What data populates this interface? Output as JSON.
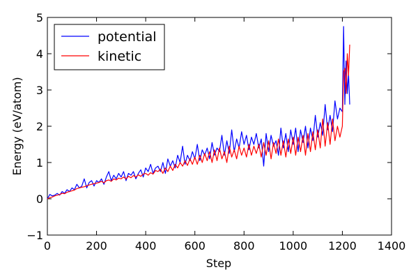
{
  "chart_data": {
    "type": "line",
    "title": "",
    "xlabel": "Step",
    "ylabel": "Energy (eV/atom)",
    "xlim": [
      0,
      1400
    ],
    "ylim": [
      -1,
      5
    ],
    "xticks": [
      "0",
      "200",
      "400",
      "600",
      "800",
      "1000",
      "1200",
      "1400"
    ],
    "yticks": [
      "−1",
      "0",
      "1",
      "2",
      "3",
      "4",
      "5"
    ],
    "grid": false,
    "legend_position": "upper-left",
    "series": [
      {
        "name": "potential",
        "color": "#0000ff",
        "points": [
          [
            0,
            0.0
          ],
          [
            10,
            0.12
          ],
          [
            20,
            0.08
          ],
          [
            30,
            0.1
          ],
          [
            40,
            0.15
          ],
          [
            50,
            0.1
          ],
          [
            60,
            0.2
          ],
          [
            70,
            0.15
          ],
          [
            80,
            0.25
          ],
          [
            90,
            0.2
          ],
          [
            100,
            0.3
          ],
          [
            110,
            0.25
          ],
          [
            120,
            0.4
          ],
          [
            130,
            0.3
          ],
          [
            140,
            0.35
          ],
          [
            150,
            0.55
          ],
          [
            160,
            0.3
          ],
          [
            170,
            0.45
          ],
          [
            180,
            0.5
          ],
          [
            190,
            0.35
          ],
          [
            200,
            0.5
          ],
          [
            210,
            0.45
          ],
          [
            220,
            0.55
          ],
          [
            230,
            0.4
          ],
          [
            240,
            0.6
          ],
          [
            250,
            0.75
          ],
          [
            260,
            0.5
          ],
          [
            270,
            0.65
          ],
          [
            280,
            0.55
          ],
          [
            290,
            0.7
          ],
          [
            300,
            0.6
          ],
          [
            310,
            0.75
          ],
          [
            320,
            0.5
          ],
          [
            330,
            0.7
          ],
          [
            340,
            0.65
          ],
          [
            350,
            0.75
          ],
          [
            360,
            0.55
          ],
          [
            370,
            0.7
          ],
          [
            380,
            0.8
          ],
          [
            390,
            0.6
          ],
          [
            400,
            0.85
          ],
          [
            410,
            0.75
          ],
          [
            420,
            0.95
          ],
          [
            430,
            0.7
          ],
          [
            440,
            0.85
          ],
          [
            450,
            0.9
          ],
          [
            460,
            0.75
          ],
          [
            470,
            1.0
          ],
          [
            480,
            0.7
          ],
          [
            490,
            1.1
          ],
          [
            500,
            0.9
          ],
          [
            510,
            1.05
          ],
          [
            520,
            0.85
          ],
          [
            530,
            1.2
          ],
          [
            540,
            1.0
          ],
          [
            550,
            1.45
          ],
          [
            560,
            0.95
          ],
          [
            570,
            1.2
          ],
          [
            580,
            1.05
          ],
          [
            590,
            1.3
          ],
          [
            600,
            1.1
          ],
          [
            610,
            1.5
          ],
          [
            620,
            1.05
          ],
          [
            630,
            1.35
          ],
          [
            640,
            1.2
          ],
          [
            650,
            1.4
          ],
          [
            660,
            1.1
          ],
          [
            670,
            1.55
          ],
          [
            680,
            1.2
          ],
          [
            690,
            1.4
          ],
          [
            700,
            1.3
          ],
          [
            710,
            1.75
          ],
          [
            720,
            1.2
          ],
          [
            730,
            1.6
          ],
          [
            740,
            1.25
          ],
          [
            750,
            1.9
          ],
          [
            760,
            1.3
          ],
          [
            770,
            1.65
          ],
          [
            780,
            1.4
          ],
          [
            790,
            1.85
          ],
          [
            800,
            1.5
          ],
          [
            810,
            1.75
          ],
          [
            820,
            1.35
          ],
          [
            830,
            1.7
          ],
          [
            840,
            1.5
          ],
          [
            850,
            1.8
          ],
          [
            860,
            1.4
          ],
          [
            870,
            1.65
          ],
          [
            880,
            0.9
          ],
          [
            890,
            1.8
          ],
          [
            900,
            1.3
          ],
          [
            910,
            1.75
          ],
          [
            920,
            1.45
          ],
          [
            930,
            1.6
          ],
          [
            940,
            1.2
          ],
          [
            950,
            1.95
          ],
          [
            960,
            1.4
          ],
          [
            970,
            1.8
          ],
          [
            980,
            1.3
          ],
          [
            990,
            1.9
          ],
          [
            1000,
            1.5
          ],
          [
            1010,
            1.95
          ],
          [
            1020,
            1.3
          ],
          [
            1030,
            1.9
          ],
          [
            1040,
            1.55
          ],
          [
            1050,
            2.0
          ],
          [
            1060,
            1.4
          ],
          [
            1070,
            1.95
          ],
          [
            1080,
            1.6
          ],
          [
            1090,
            2.3
          ],
          [
            1100,
            1.7
          ],
          [
            1110,
            2.1
          ],
          [
            1120,
            1.75
          ],
          [
            1130,
            2.6
          ],
          [
            1140,
            1.9
          ],
          [
            1150,
            2.3
          ],
          [
            1160,
            1.85
          ],
          [
            1170,
            2.7
          ],
          [
            1180,
            2.2
          ],
          [
            1190,
            2.5
          ],
          [
            1200,
            2.4
          ],
          [
            1205,
            4.75
          ],
          [
            1210,
            2.6
          ],
          [
            1215,
            3.8
          ],
          [
            1220,
            2.9
          ],
          [
            1225,
            3.45
          ],
          [
            1230,
            2.6
          ]
        ]
      },
      {
        "name": "kinetic",
        "color": "#ff0000",
        "points": [
          [
            0,
            0.0
          ],
          [
            10,
            0.03
          ],
          [
            20,
            0.05
          ],
          [
            30,
            0.08
          ],
          [
            40,
            0.1
          ],
          [
            50,
            0.12
          ],
          [
            60,
            0.15
          ],
          [
            70,
            0.14
          ],
          [
            80,
            0.18
          ],
          [
            90,
            0.2
          ],
          [
            100,
            0.22
          ],
          [
            110,
            0.24
          ],
          [
            120,
            0.28
          ],
          [
            130,
            0.3
          ],
          [
            140,
            0.32
          ],
          [
            150,
            0.33
          ],
          [
            160,
            0.36
          ],
          [
            170,
            0.38
          ],
          [
            180,
            0.4
          ],
          [
            190,
            0.42
          ],
          [
            200,
            0.43
          ],
          [
            210,
            0.45
          ],
          [
            220,
            0.48
          ],
          [
            230,
            0.44
          ],
          [
            240,
            0.5
          ],
          [
            250,
            0.52
          ],
          [
            260,
            0.48
          ],
          [
            270,
            0.55
          ],
          [
            280,
            0.52
          ],
          [
            290,
            0.57
          ],
          [
            300,
            0.55
          ],
          [
            310,
            0.6
          ],
          [
            320,
            0.55
          ],
          [
            330,
            0.62
          ],
          [
            340,
            0.58
          ],
          [
            350,
            0.64
          ],
          [
            360,
            0.6
          ],
          [
            370,
            0.66
          ],
          [
            380,
            0.62
          ],
          [
            390,
            0.68
          ],
          [
            400,
            0.7
          ],
          [
            410,
            0.65
          ],
          [
            420,
            0.72
          ],
          [
            430,
            0.68
          ],
          [
            440,
            0.78
          ],
          [
            450,
            0.75
          ],
          [
            460,
            0.82
          ],
          [
            470,
            0.7
          ],
          [
            480,
            0.85
          ],
          [
            490,
            0.75
          ],
          [
            500,
            0.9
          ],
          [
            510,
            0.78
          ],
          [
            520,
            0.95
          ],
          [
            530,
            0.85
          ],
          [
            540,
            1.0
          ],
          [
            550,
            0.9
          ],
          [
            560,
            1.05
          ],
          [
            570,
            0.92
          ],
          [
            580,
            1.1
          ],
          [
            590,
            0.95
          ],
          [
            600,
            1.15
          ],
          [
            610,
            0.95
          ],
          [
            620,
            1.2
          ],
          [
            630,
            1.0
          ],
          [
            640,
            1.25
          ],
          [
            650,
            1.05
          ],
          [
            660,
            1.3
          ],
          [
            670,
            1.0
          ],
          [
            680,
            1.35
          ],
          [
            690,
            1.05
          ],
          [
            700,
            1.4
          ],
          [
            710,
            1.1
          ],
          [
            720,
            1.3
          ],
          [
            730,
            1.0
          ],
          [
            740,
            1.45
          ],
          [
            750,
            1.15
          ],
          [
            760,
            1.35
          ],
          [
            770,
            1.1
          ],
          [
            780,
            1.45
          ],
          [
            790,
            1.2
          ],
          [
            800,
            1.4
          ],
          [
            810,
            1.15
          ],
          [
            820,
            1.5
          ],
          [
            830,
            1.2
          ],
          [
            840,
            1.45
          ],
          [
            850,
            1.25
          ],
          [
            860,
            1.5
          ],
          [
            870,
            1.15
          ],
          [
            880,
            1.55
          ],
          [
            890,
            1.2
          ],
          [
            900,
            1.6
          ],
          [
            910,
            1.1
          ],
          [
            920,
            1.55
          ],
          [
            930,
            1.25
          ],
          [
            940,
            1.65
          ],
          [
            950,
            1.2
          ],
          [
            960,
            1.6
          ],
          [
            970,
            1.15
          ],
          [
            980,
            1.65
          ],
          [
            990,
            1.25
          ],
          [
            1000,
            1.7
          ],
          [
            1010,
            1.2
          ],
          [
            1020,
            1.7
          ],
          [
            1030,
            1.3
          ],
          [
            1040,
            1.75
          ],
          [
            1050,
            1.2
          ],
          [
            1060,
            1.8
          ],
          [
            1070,
            1.3
          ],
          [
            1080,
            1.85
          ],
          [
            1090,
            1.35
          ],
          [
            1100,
            1.9
          ],
          [
            1110,
            1.4
          ],
          [
            1120,
            2.2
          ],
          [
            1130,
            1.45
          ],
          [
            1140,
            2.1
          ],
          [
            1150,
            1.5
          ],
          [
            1160,
            2.2
          ],
          [
            1170,
            1.6
          ],
          [
            1180,
            2.0
          ],
          [
            1190,
            1.7
          ],
          [
            1200,
            2.0
          ],
          [
            1205,
            3.5
          ],
          [
            1210,
            3.6
          ],
          [
            1215,
            2.9
          ],
          [
            1220,
            4.0
          ],
          [
            1225,
            3.4
          ],
          [
            1230,
            4.25
          ]
        ]
      }
    ]
  }
}
